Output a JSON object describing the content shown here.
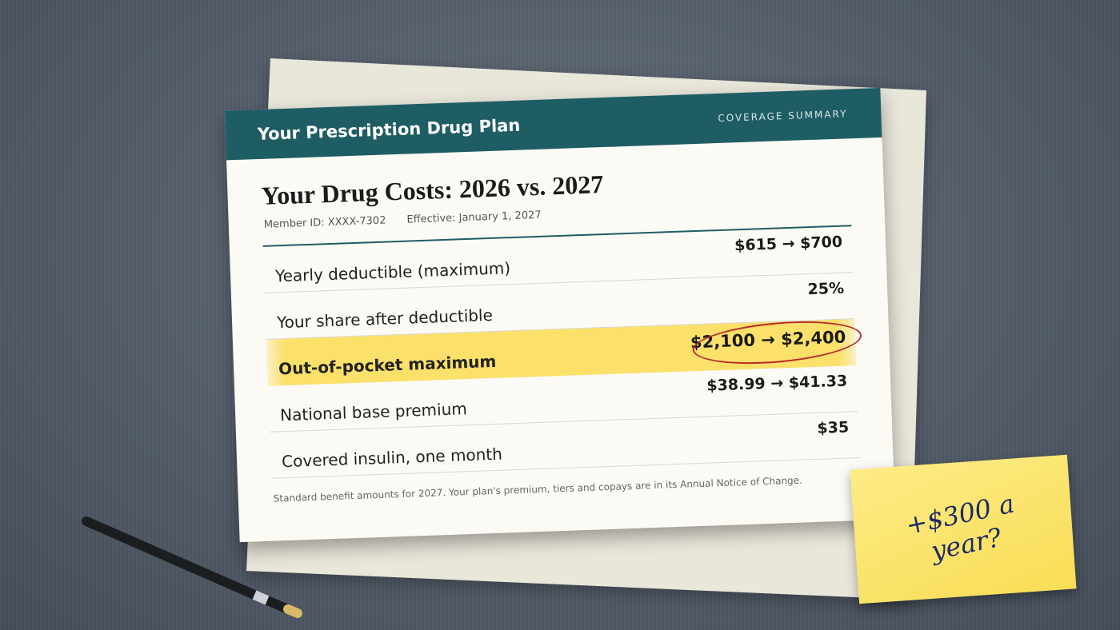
{
  "header": {
    "title": "Your Prescription Drug Plan",
    "label": "COVERAGE SUMMARY"
  },
  "document": {
    "title": "Your Drug Costs: 2026 vs. 2027",
    "member_id": "Member ID: XXXX-7302",
    "effective": "Effective: January 1, 2027",
    "rows": [
      {
        "label": "Yearly deductible (maximum)",
        "value": "$615 → $700"
      },
      {
        "label": "Your share after deductible",
        "value": "25%"
      },
      {
        "label": "Out-of-pocket maximum",
        "value": "$2,100 → $2,400"
      },
      {
        "label": "National base premium",
        "value": "$38.99 → $41.33"
      },
      {
        "label": "Covered insulin, one month",
        "value": "$35"
      }
    ],
    "footnote": "Standard benefit amounts for 2027. Your plan's premium, tiers and copays are in its Annual Notice of Change."
  },
  "sticky_note": {
    "text": "+$300 a year?"
  }
}
